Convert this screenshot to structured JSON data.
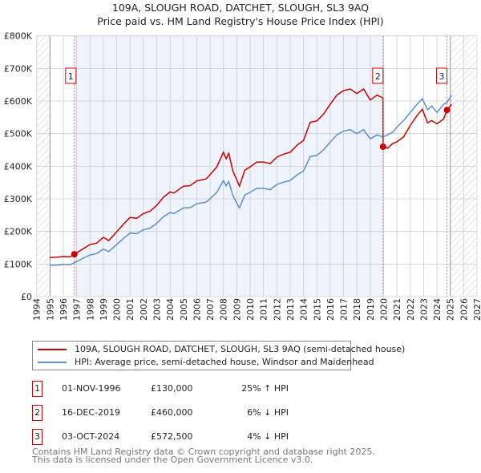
{
  "title": "109A, SLOUGH ROAD, DATCHET, SLOUGH, SL3 9AQ",
  "subtitle": "Price paid vs. HM Land Registry's House Price Index (HPI)",
  "colors": {
    "property": "#cc0000",
    "hpi": "#5b8fd0",
    "shade": "#eef3fc"
  },
  "chart_data": {
    "type": "line",
    "title": "109A, SLOUGH ROAD, DATCHET, SLOUGH, SL3 9AQ - Price paid vs. HM Land Registry's House Price Index (HPI)",
    "xlim": [
      1994,
      2027
    ],
    "ylim": [
      0,
      800000
    ],
    "x_ticks": [
      "1994",
      "1995",
      "1996",
      "1997",
      "1998",
      "1999",
      "2000",
      "2001",
      "2002",
      "2003",
      "2004",
      "2005",
      "2006",
      "2007",
      "2008",
      "2009",
      "2010",
      "2011",
      "2012",
      "2013",
      "2014",
      "2015",
      "2016",
      "2017",
      "2018",
      "2019",
      "2020",
      "2021",
      "2022",
      "2023",
      "2024",
      "2025",
      "2026",
      "2027"
    ],
    "y_ticks": [
      {
        "value": 0,
        "label": "£0"
      },
      {
        "value": 100000,
        "label": "£100K"
      },
      {
        "value": 200000,
        "label": "£200K"
      },
      {
        "value": 300000,
        "label": "£300K"
      },
      {
        "value": 400000,
        "label": "£400K"
      },
      {
        "value": 500000,
        "label": "£500K"
      },
      {
        "value": 600000,
        "label": "£600K"
      },
      {
        "value": 700000,
        "label": "£700K"
      },
      {
        "value": 800000,
        "label": "£800K"
      }
    ],
    "grid": true,
    "series": [
      {
        "name": "109A, SLOUGH ROAD, DATCHET, SLOUGH, SL3 9AQ (semi-detached house)",
        "color": "#cc0000",
        "x": [
          1995.0,
          1995.5,
          1996.0,
          1996.5,
          1996.83,
          1997.5,
          1998.0,
          1998.5,
          1999.0,
          1999.4,
          2000.0,
          2000.5,
          2001.0,
          2001.5,
          2002.0,
          2002.5,
          2003.0,
          2003.5,
          2004.0,
          2004.3,
          2005.0,
          2005.5,
          2006.0,
          2006.7,
          2007.0,
          2007.5,
          2008.0,
          2008.2,
          2008.4,
          2008.7,
          2009.2,
          2009.6,
          2010.0,
          2010.5,
          2011.0,
          2011.5,
          2012.0,
          2012.5,
          2013.0,
          2013.5,
          2014.0,
          2014.5,
          2015.0,
          2015.5,
          2016.0,
          2016.5,
          2017.0,
          2017.5,
          2018.0,
          2018.5,
          2019.0,
          2019.5,
          2019.95,
          2019.96,
          2020.3,
          2020.7,
          2021.0,
          2021.5,
          2022.0,
          2022.5,
          2022.9,
          2023.3,
          2023.6,
          2024.0,
          2024.5,
          2024.75,
          2025.1
        ],
        "y": [
          120000,
          121000,
          123000,
          122000,
          130000,
          147000,
          160000,
          164000,
          182000,
          172000,
          199000,
          222000,
          243000,
          240000,
          255000,
          262000,
          280000,
          305000,
          321000,
          318000,
          339000,
          340000,
          355000,
          361000,
          374000,
          398000,
          443000,
          423000,
          440000,
          386000,
          339000,
          388000,
          398000,
          413000,
          413000,
          408000,
          428000,
          437000,
          443000,
          464000,
          479000,
          535000,
          539000,
          560000,
          590000,
          618000,
          632000,
          637000,
          623000,
          637000,
          603000,
          618000,
          610000,
          460000,
          455000,
          470000,
          475000,
          490000,
          525000,
          555000,
          575000,
          533000,
          540000,
          530000,
          545000,
          572500,
          590000
        ]
      },
      {
        "name": "HPI: Average price, semi-detached house, Windsor and Maidenhead",
        "color": "#5b8fd0",
        "x": [
          1995.0,
          1995.5,
          1996.0,
          1996.5,
          1996.83,
          1997.5,
          1998.0,
          1998.5,
          1999.0,
          1999.4,
          2000.0,
          2000.5,
          2001.0,
          2001.5,
          2002.0,
          2002.5,
          2003.0,
          2003.5,
          2004.0,
          2004.3,
          2005.0,
          2005.5,
          2006.0,
          2006.7,
          2007.0,
          2007.5,
          2008.0,
          2008.2,
          2008.4,
          2008.7,
          2009.2,
          2009.6,
          2010.0,
          2010.5,
          2011.0,
          2011.5,
          2012.0,
          2012.5,
          2013.0,
          2013.5,
          2014.0,
          2014.5,
          2015.0,
          2015.5,
          2016.0,
          2016.5,
          2017.0,
          2017.5,
          2018.0,
          2018.5,
          2019.0,
          2019.5,
          2019.96,
          2020.3,
          2020.7,
          2021.0,
          2021.5,
          2022.0,
          2022.5,
          2022.9,
          2023.3,
          2023.6,
          2024.0,
          2024.5,
          2024.75,
          2025.1
        ],
        "y": [
          96000,
          97000,
          99000,
          98000,
          104000,
          118000,
          128000,
          132000,
          146000,
          138000,
          160000,
          178000,
          195000,
          193000,
          205000,
          210000,
          225000,
          245000,
          258000,
          255000,
          272000,
          273000,
          285000,
          290000,
          300000,
          320000,
          356000,
          340000,
          353000,
          310000,
          272000,
          312000,
          320000,
          332000,
          332000,
          328000,
          344000,
          351000,
          356000,
          373000,
          385000,
          430000,
          433000,
          450000,
          474000,
          496000,
          508000,
          512000,
          500000,
          512000,
          484000,
          496000,
          490000,
          496000,
          505000,
          520000,
          540000,
          565000,
          590000,
          607000,
          573000,
          585000,
          565000,
          590000,
          596000,
          617000
        ]
      }
    ],
    "sales": [
      {
        "id": "1",
        "x": 1996.83,
        "y": 130000
      },
      {
        "id": "2",
        "x": 2019.96,
        "y": 460000
      },
      {
        "id": "3",
        "x": 2024.75,
        "y": 572500
      }
    ],
    "data_range": [
      1995,
      2025
    ],
    "legend_position": "below"
  },
  "legend": [
    {
      "label": "109A, SLOUGH ROAD, DATCHET, SLOUGH, SL3 9AQ (semi-detached house)"
    },
    {
      "label": "HPI: Average price, semi-detached house, Windsor and Maidenhead"
    }
  ],
  "table": [
    {
      "id": "1",
      "date": "01-NOV-1996",
      "price": "£130,000",
      "hpi": "25% ↑ HPI"
    },
    {
      "id": "2",
      "date": "16-DEC-2019",
      "price": "£460,000",
      "hpi": "6% ↓ HPI"
    },
    {
      "id": "3",
      "date": "03-OCT-2024",
      "price": "£572,500",
      "hpi": "4% ↓ HPI"
    }
  ],
  "footer": {
    "line1": "Contains HM Land Registry data © Crown copyright and database right 2025.",
    "line2": "This data is licensed under the Open Government Licence v3.0."
  }
}
